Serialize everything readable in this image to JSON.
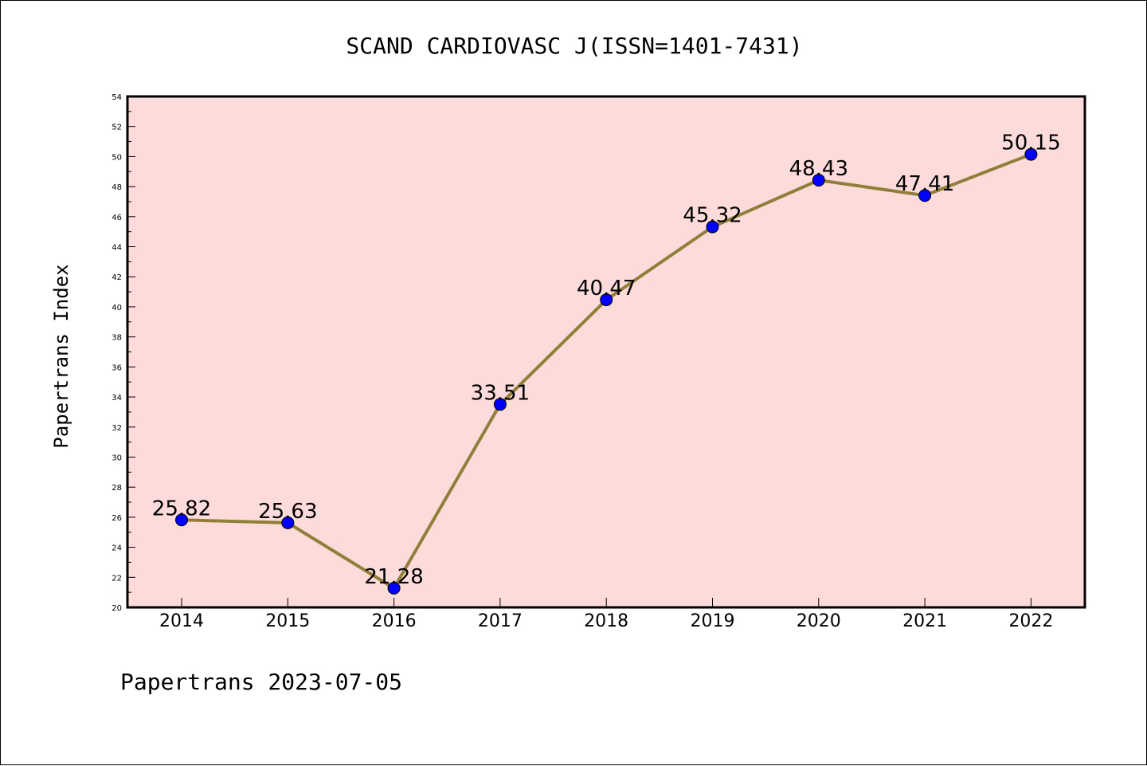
{
  "title": "SCAND CARDIOVASC J(ISSN=1401-7431)",
  "footer": "Papertrans 2023-07-05",
  "colors": {
    "plot_background": "#fddbda",
    "line": "#8f7f3a",
    "marker": "#0000ff"
  },
  "chart_data": {
    "type": "line",
    "title": "SCAND CARDIOVASC J(ISSN=1401-7431)",
    "xlabel": "",
    "ylabel": "Papertrans Index",
    "categories": [
      "2014",
      "2015",
      "2016",
      "2017",
      "2018",
      "2019",
      "2020",
      "2021",
      "2022"
    ],
    "series": [
      {
        "values": [
          25.82,
          25.63,
          21.28,
          33.51,
          40.47,
          45.32,
          48.43,
          47.41,
          50.15
        ],
        "labels": [
          "25.82",
          "25.63",
          "21.28",
          "33.51",
          "40.47",
          "45.32",
          "48.43",
          "47.41",
          "50.15"
        ]
      }
    ],
    "ylim": [
      20,
      54
    ],
    "yticks": [
      20,
      22,
      24,
      26,
      28,
      30,
      32,
      34,
      36,
      38,
      40,
      42,
      44,
      46,
      48,
      50,
      52,
      54
    ],
    "grid": false,
    "legend": "none"
  }
}
